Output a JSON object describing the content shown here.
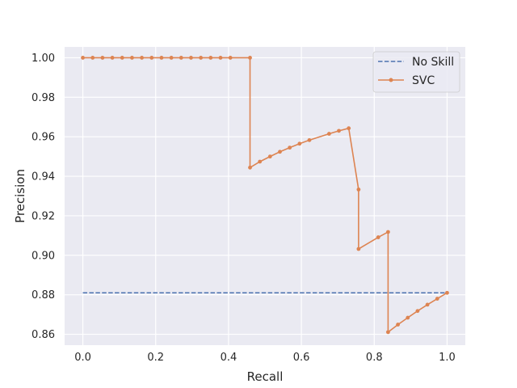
{
  "chart_data": {
    "type": "line",
    "xlabel": "Recall",
    "ylabel": "Precision",
    "xlim": [
      -0.05,
      1.05
    ],
    "ylim": [
      0.8545,
      1.0055
    ],
    "xticks": [
      0.0,
      0.2,
      0.4,
      0.6,
      0.8,
      1.0
    ],
    "xtick_labels": [
      "0.0",
      "0.2",
      "0.4",
      "0.6",
      "0.8",
      "1.0"
    ],
    "yticks": [
      0.86,
      0.88,
      0.9,
      0.92,
      0.94,
      0.96,
      0.98,
      1.0
    ],
    "ytick_labels": [
      "0.86",
      "0.88",
      "0.90",
      "0.92",
      "0.94",
      "0.96",
      "0.98",
      "1.00"
    ],
    "grid": true,
    "legend_position": "top-right",
    "series": [
      {
        "name": "No Skill",
        "style": "dashed",
        "color": "#4c72b0",
        "x": [
          0.0,
          1.0
        ],
        "y": [
          0.881,
          0.881
        ]
      },
      {
        "name": "SVC",
        "style": "solid-with-markers",
        "color": "#dd8452",
        "x": [
          0.0,
          0.027,
          0.054,
          0.081,
          0.108,
          0.135,
          0.162,
          0.189,
          0.216,
          0.243,
          0.27,
          0.297,
          0.324,
          0.351,
          0.378,
          0.405,
          0.459,
          0.459,
          0.486,
          0.514,
          0.541,
          0.568,
          0.595,
          0.622,
          0.676,
          0.703,
          0.73,
          0.757,
          0.757,
          0.811,
          0.838,
          0.838,
          0.865,
          0.892,
          0.919,
          0.946,
          0.973,
          1.0
        ],
        "y": [
          1.0,
          1.0,
          1.0,
          1.0,
          1.0,
          1.0,
          1.0,
          1.0,
          1.0,
          1.0,
          1.0,
          1.0,
          1.0,
          1.0,
          1.0,
          1.0,
          1.0,
          0.9444,
          0.9474,
          0.95,
          0.9524,
          0.9545,
          0.9565,
          0.9583,
          0.9615,
          0.963,
          0.9643,
          0.9333,
          0.9032,
          0.9091,
          0.9118,
          0.8611,
          0.8649,
          0.8684,
          0.8718,
          0.875,
          0.878,
          0.881
        ]
      }
    ]
  }
}
